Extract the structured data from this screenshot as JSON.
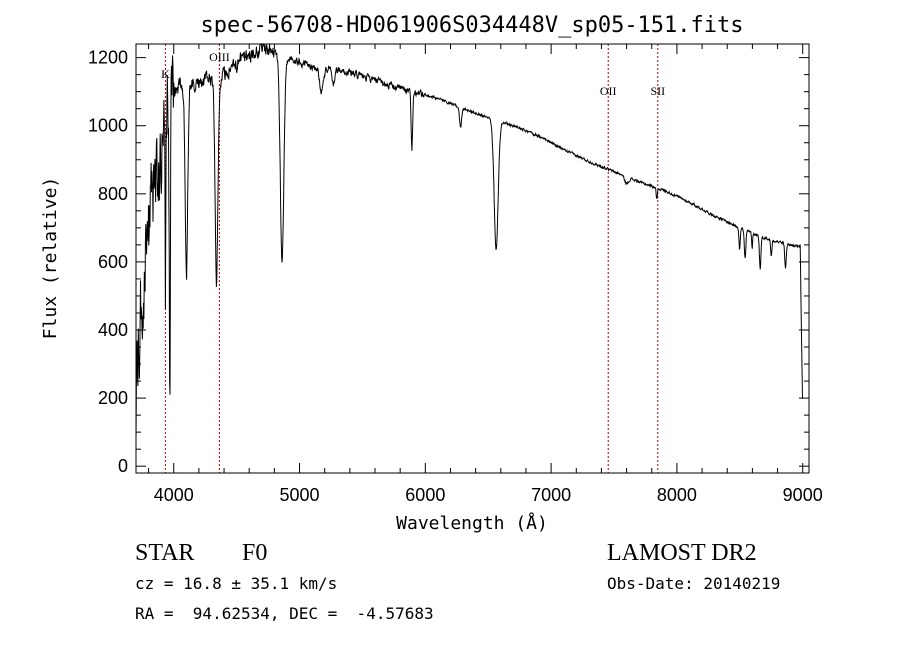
{
  "chart_data": {
    "type": "line",
    "title": "spec-56708-HD061906S034448V_sp05-151.fits",
    "xlabel": "Wavelength (Å)",
    "ylabel": "Flux (relative)",
    "xlim": [
      3700,
      9050
    ],
    "ylim": [
      -20,
      1240
    ],
    "xticks": [
      4000,
      5000,
      6000,
      7000,
      8000,
      9000
    ],
    "yticks": [
      0,
      200,
      400,
      600,
      800,
      1000,
      1200
    ],
    "lines": [
      {
        "name": "K",
        "x": 3934
      },
      {
        "name": "OIII",
        "x": 4363
      },
      {
        "name": "OII",
        "x": 7454
      },
      {
        "name": "SII",
        "x": 7848
      }
    ],
    "continuum": [
      [
        3700,
        150
      ],
      [
        3720,
        350
      ],
      [
        3760,
        560
      ],
      [
        3800,
        720
      ],
      [
        3850,
        820
      ],
      [
        3900,
        930
      ],
      [
        3950,
        1040
      ],
      [
        4000,
        1090
      ],
      [
        4050,
        1120
      ],
      [
        4100,
        1115
      ],
      [
        4200,
        1130
      ],
      [
        4300,
        1140
      ],
      [
        4400,
        1150
      ],
      [
        4500,
        1180
      ],
      [
        4600,
        1210
      ],
      [
        4700,
        1225
      ],
      [
        4800,
        1215
      ],
      [
        4900,
        1200
      ],
      [
        5000,
        1185
      ],
      [
        5100,
        1175
      ],
      [
        5200,
        1170
      ],
      [
        5300,
        1165
      ],
      [
        5500,
        1145
      ],
      [
        5700,
        1120
      ],
      [
        5900,
        1100
      ],
      [
        6100,
        1080
      ],
      [
        6300,
        1050
      ],
      [
        6500,
        1025
      ],
      [
        6700,
        1000
      ],
      [
        6900,
        970
      ],
      [
        7100,
        930
      ],
      [
        7300,
        895
      ],
      [
        7500,
        865
      ],
      [
        7700,
        835
      ],
      [
        7900,
        810
      ],
      [
        8100,
        775
      ],
      [
        8300,
        735
      ],
      [
        8500,
        700
      ],
      [
        8700,
        670
      ],
      [
        8900,
        650
      ],
      [
        8980,
        645
      ],
      [
        9000,
        150
      ]
    ],
    "absorption": [
      {
        "center": 3934,
        "depth": 650,
        "width": 3
      },
      {
        "center": 3968,
        "depth": 420,
        "width": 4
      },
      {
        "center": 3970,
        "depth": 500,
        "width": 4
      },
      {
        "center": 4101,
        "depth": 560,
        "width": 10
      },
      {
        "center": 4340,
        "depth": 600,
        "width": 11
      },
      {
        "center": 4861,
        "depth": 600,
        "width": 14
      },
      {
        "center": 5175,
        "depth": 70,
        "width": 15
      },
      {
        "center": 5270,
        "depth": 40,
        "width": 10
      },
      {
        "center": 5893,
        "depth": 170,
        "width": 6
      },
      {
        "center": 6280,
        "depth": 60,
        "width": 8
      },
      {
        "center": 6563,
        "depth": 380,
        "width": 16
      },
      {
        "center": 7600,
        "depth": 20,
        "width": 15
      },
      {
        "center": 7840,
        "depth": 30,
        "width": 5
      },
      {
        "center": 8498,
        "depth": 60,
        "width": 5
      },
      {
        "center": 8542,
        "depth": 85,
        "width": 6
      },
      {
        "center": 8598,
        "depth": 45,
        "width": 4
      },
      {
        "center": 8662,
        "depth": 95,
        "width": 6
      },
      {
        "center": 8750,
        "depth": 50,
        "width": 5
      },
      {
        "center": 8863,
        "depth": 70,
        "width": 6
      }
    ],
    "noise": [
      {
        "from": 3700,
        "to": 4000,
        "amplitude": 190
      },
      {
        "from": 4000,
        "to": 4800,
        "amplitude": 35
      },
      {
        "from": 4800,
        "to": 6000,
        "amplitude": 16
      },
      {
        "from": 6000,
        "to": 9000,
        "amplitude": 6
      }
    ]
  },
  "info": {
    "object_class": "STAR",
    "subclass": "F0",
    "survey": "LAMOST DR2",
    "cz": "cz = 16.8 ± 35.1 km/s",
    "obs_date": "Obs-Date: 20140219",
    "coords": "RA =  94.62534, DEC =  -4.57683"
  }
}
